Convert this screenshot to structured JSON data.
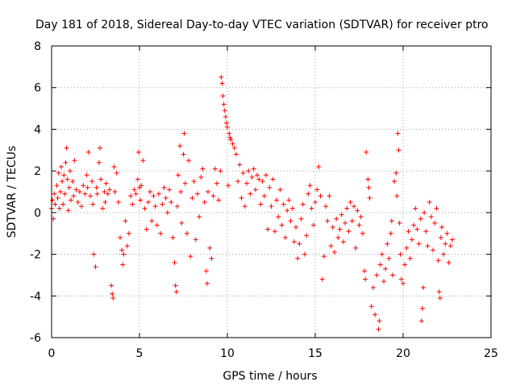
{
  "chart_data": {
    "type": "scatter",
    "title": "Day 181 of 2018, Sidereal Day-to-day VTEC variation (SDTVAR) for receiver ptro",
    "xlabel": "GPS time / hours",
    "ylabel": "SDTVAR / TECUs",
    "xlim": [
      0,
      25
    ],
    "ylim": [
      -6,
      8
    ],
    "xticks": [
      0,
      5,
      10,
      15,
      20,
      25
    ],
    "yticks": [
      -6,
      -4,
      -2,
      0,
      2,
      4,
      6,
      8
    ],
    "xtick_labels": [
      "0",
      "5",
      "10",
      "15",
      "20",
      "25"
    ],
    "ytick_labels": [
      "-6",
      "-4",
      "-2",
      "0",
      "2",
      "4",
      "6",
      "8"
    ],
    "grid": true,
    "marker": "+",
    "color": "#ff0000",
    "series": [
      {
        "name": "SDTVAR",
        "points": [
          [
            0.0,
            0.2
          ],
          [
            0.05,
            0.6
          ],
          [
            0.1,
            -0.3
          ],
          [
            0.15,
            0.9
          ],
          [
            0.2,
            0.4
          ],
          [
            0.3,
            1.3
          ],
          [
            0.35,
            0.7
          ],
          [
            0.4,
            1.9
          ],
          [
            0.45,
            0.2
          ],
          [
            0.5,
            1.0
          ],
          [
            0.55,
            2.2
          ],
          [
            0.6,
            1.5
          ],
          [
            0.65,
            0.4
          ],
          [
            0.7,
            1.8
          ],
          [
            0.75,
            0.9
          ],
          [
            0.8,
            2.4
          ],
          [
            0.85,
            3.1
          ],
          [
            0.9,
            1.6
          ],
          [
            0.95,
            0.1
          ],
          [
            1.0,
            1.2
          ],
          [
            1.05,
            2.0
          ],
          [
            1.1,
            0.6
          ],
          [
            1.2,
            1.5
          ],
          [
            1.25,
            0.8
          ],
          [
            1.3,
            2.5
          ],
          [
            1.4,
            1.1
          ],
          [
            1.5,
            0.5
          ],
          [
            1.6,
            1.0
          ],
          [
            1.7,
            0.3
          ],
          [
            1.8,
            1.3
          ],
          [
            1.9,
            0.9
          ],
          [
            2.0,
            1.8
          ],
          [
            2.05,
            1.2
          ],
          [
            2.1,
            2.9
          ],
          [
            2.2,
            0.8
          ],
          [
            2.3,
            1.5
          ],
          [
            2.35,
            0.4
          ],
          [
            2.4,
            -2.0
          ],
          [
            2.5,
            -2.6
          ],
          [
            2.55,
            1.2
          ],
          [
            2.6,
            0.9
          ],
          [
            2.7,
            2.4
          ],
          [
            2.75,
            3.1
          ],
          [
            2.8,
            1.6
          ],
          [
            2.9,
            0.2
          ],
          [
            3.0,
            1.0
          ],
          [
            3.05,
            0.5
          ],
          [
            3.1,
            1.4
          ],
          [
            3.2,
            0.9
          ],
          [
            3.3,
            1.1
          ],
          [
            3.4,
            -3.5
          ],
          [
            3.45,
            -3.9
          ],
          [
            3.5,
            -4.1
          ],
          [
            3.55,
            2.2
          ],
          [
            3.6,
            1.0
          ],
          [
            3.7,
            1.9
          ],
          [
            3.8,
            0.5
          ],
          [
            3.9,
            -1.2
          ],
          [
            4.0,
            -1.8
          ],
          [
            4.05,
            -2.5
          ],
          [
            4.1,
            -2.0
          ],
          [
            4.2,
            -0.4
          ],
          [
            4.3,
            -1.6
          ],
          [
            4.4,
            -1.0
          ],
          [
            4.5,
            0.8
          ],
          [
            4.6,
            0.4
          ],
          [
            4.7,
            1.1
          ],
          [
            4.8,
            0.9
          ],
          [
            4.9,
            1.6
          ],
          [
            4.95,
            2.9
          ],
          [
            5.0,
            1.2
          ],
          [
            5.05,
            0.6
          ],
          [
            5.1,
            1.3
          ],
          [
            5.2,
            2.5
          ],
          [
            5.3,
            0.2
          ],
          [
            5.4,
            -0.8
          ],
          [
            5.5,
            0.5
          ],
          [
            5.6,
            1.0
          ],
          [
            5.7,
            -0.4
          ],
          [
            5.8,
            0.8
          ],
          [
            5.9,
            0.3
          ],
          [
            6.0,
            -0.6
          ],
          [
            6.1,
            0.9
          ],
          [
            6.2,
            -1.0
          ],
          [
            6.3,
            0.4
          ],
          [
            6.4,
            1.2
          ],
          [
            6.5,
            0.7
          ],
          [
            6.6,
            0.0
          ],
          [
            6.7,
            1.1
          ],
          [
            6.8,
            0.5
          ],
          [
            6.9,
            -1.2
          ],
          [
            7.0,
            -2.4
          ],
          [
            7.05,
            -3.5
          ],
          [
            7.1,
            -3.8
          ],
          [
            7.15,
            0.3
          ],
          [
            7.2,
            1.8
          ],
          [
            7.3,
            3.2
          ],
          [
            7.35,
            1.0
          ],
          [
            7.4,
            -0.5
          ],
          [
            7.5,
            2.8
          ],
          [
            7.55,
            3.8
          ],
          [
            7.6,
            1.4
          ],
          [
            7.7,
            -1.0
          ],
          [
            7.8,
            2.5
          ],
          [
            7.9,
            -2.1
          ],
          [
            8.0,
            0.7
          ],
          [
            8.1,
            1.5
          ],
          [
            8.2,
            -1.3
          ],
          [
            8.3,
            0.9
          ],
          [
            8.4,
            -0.2
          ],
          [
            8.5,
            1.7
          ],
          [
            8.6,
            2.1
          ],
          [
            8.7,
            0.5
          ],
          [
            8.8,
            -2.8
          ],
          [
            8.85,
            -3.4
          ],
          [
            8.9,
            1.0
          ],
          [
            9.0,
            -1.7
          ],
          [
            9.1,
            -2.2
          ],
          [
            9.2,
            0.8
          ],
          [
            9.3,
            2.1
          ],
          [
            9.4,
            1.4
          ],
          [
            9.5,
            0.6
          ],
          [
            9.6,
            2.0
          ],
          [
            9.65,
            6.5
          ],
          [
            9.7,
            6.2
          ],
          [
            9.75,
            5.6
          ],
          [
            9.8,
            5.2
          ],
          [
            9.85,
            4.9
          ],
          [
            9.9,
            4.6
          ],
          [
            9.95,
            4.3
          ],
          [
            10.0,
            4.1
          ],
          [
            10.05,
            1.3
          ],
          [
            10.1,
            3.8
          ],
          [
            10.15,
            3.6
          ],
          [
            10.2,
            3.5
          ],
          [
            10.3,
            3.3
          ],
          [
            10.4,
            3.1
          ],
          [
            10.5,
            2.8
          ],
          [
            10.6,
            1.5
          ],
          [
            10.7,
            2.3
          ],
          [
            10.8,
            0.7
          ],
          [
            10.9,
            1.9
          ],
          [
            11.0,
            0.3
          ],
          [
            11.1,
            1.4
          ],
          [
            11.2,
            2.0
          ],
          [
            11.3,
            0.9
          ],
          [
            11.4,
            1.7
          ],
          [
            11.5,
            2.1
          ],
          [
            11.6,
            1.1
          ],
          [
            11.7,
            1.8
          ],
          [
            11.8,
            1.6
          ],
          [
            11.9,
            0.4
          ],
          [
            12.0,
            1.5
          ],
          [
            12.1,
            0.8
          ],
          [
            12.2,
            1.8
          ],
          [
            12.3,
            -0.8
          ],
          [
            12.4,
            1.2
          ],
          [
            12.5,
            0.3
          ],
          [
            12.6,
            1.6
          ],
          [
            12.7,
            -0.9
          ],
          [
            12.8,
            0.6
          ],
          [
            12.9,
            -0.2
          ],
          [
            13.0,
            1.1
          ],
          [
            13.1,
            -0.6
          ],
          [
            13.2,
            0.4
          ],
          [
            13.3,
            -1.2
          ],
          [
            13.4,
            0.1
          ],
          [
            13.5,
            0.6
          ],
          [
            13.6,
            -0.4
          ],
          [
            13.7,
            0.2
          ],
          [
            13.8,
            -1.4
          ],
          [
            13.9,
            -0.7
          ],
          [
            14.0,
            -2.2
          ],
          [
            14.1,
            -1.5
          ],
          [
            14.2,
            -0.3
          ],
          [
            14.3,
            0.4
          ],
          [
            14.4,
            -2.0
          ],
          [
            14.5,
            -1.1
          ],
          [
            14.6,
            0.9
          ],
          [
            14.7,
            1.3
          ],
          [
            14.8,
            0.2
          ],
          [
            14.9,
            -0.6
          ],
          [
            15.0,
            0.5
          ],
          [
            15.1,
            1.1
          ],
          [
            15.2,
            2.2
          ],
          [
            15.3,
            0.8
          ],
          [
            15.4,
            -3.2
          ],
          [
            15.5,
            -2.1
          ],
          [
            15.6,
            0.3
          ],
          [
            15.7,
            -0.4
          ],
          [
            15.8,
            0.8
          ],
          [
            15.9,
            -1.6
          ],
          [
            16.0,
            -0.7
          ],
          [
            16.1,
            -1.9
          ],
          [
            16.2,
            -0.3
          ],
          [
            16.3,
            -1.2
          ],
          [
            16.4,
            -0.8
          ],
          [
            16.5,
            -0.1
          ],
          [
            16.6,
            -1.4
          ],
          [
            16.7,
            -0.5
          ],
          [
            16.8,
            0.2
          ],
          [
            16.9,
            -0.9
          ],
          [
            17.0,
            0.5
          ],
          [
            17.1,
            -0.4
          ],
          [
            17.2,
            0.3
          ],
          [
            17.3,
            -1.7
          ],
          [
            17.4,
            0.1
          ],
          [
            17.5,
            -0.6
          ],
          [
            17.6,
            -0.2
          ],
          [
            17.7,
            -1.0
          ],
          [
            17.8,
            -2.8
          ],
          [
            17.85,
            -3.2
          ],
          [
            17.9,
            2.9
          ],
          [
            18.0,
            1.6
          ],
          [
            18.05,
            1.2
          ],
          [
            18.1,
            0.7
          ],
          [
            18.2,
            -4.5
          ],
          [
            18.3,
            -3.6
          ],
          [
            18.4,
            -4.9
          ],
          [
            18.5,
            -3.0
          ],
          [
            18.6,
            -5.6
          ],
          [
            18.65,
            -5.2
          ],
          [
            18.7,
            -2.5
          ],
          [
            18.8,
            -2.0
          ],
          [
            18.9,
            -3.3
          ],
          [
            19.0,
            -2.7
          ],
          [
            19.1,
            -1.5
          ],
          [
            19.2,
            -2.2
          ],
          [
            19.3,
            -1.0
          ],
          [
            19.35,
            -0.4
          ],
          [
            19.4,
            -3.0
          ],
          [
            19.5,
            1.5
          ],
          [
            19.6,
            1.9
          ],
          [
            19.65,
            0.8
          ],
          [
            19.7,
            3.8
          ],
          [
            19.75,
            3.0
          ],
          [
            19.8,
            -0.5
          ],
          [
            19.85,
            -2.0
          ],
          [
            19.9,
            -3.2
          ],
          [
            20.0,
            -3.4
          ],
          [
            20.1,
            -2.5
          ],
          [
            20.2,
            -1.7
          ],
          [
            20.3,
            -0.9
          ],
          [
            20.4,
            -2.2
          ],
          [
            20.5,
            -1.3
          ],
          [
            20.6,
            -0.6
          ],
          [
            20.7,
            0.2
          ],
          [
            20.8,
            -0.8
          ],
          [
            20.9,
            -1.5
          ],
          [
            21.0,
            -0.3
          ],
          [
            21.05,
            -5.2
          ],
          [
            21.1,
            -4.6
          ],
          [
            21.15,
            -3.6
          ],
          [
            21.2,
            0.0
          ],
          [
            21.3,
            -0.9
          ],
          [
            21.4,
            -1.6
          ],
          [
            21.5,
            0.5
          ],
          [
            21.6,
            -0.2
          ],
          [
            21.7,
            -1.8
          ],
          [
            21.8,
            -0.5
          ],
          [
            21.9,
            0.2
          ],
          [
            22.0,
            -2.3
          ],
          [
            22.05,
            -3.8
          ],
          [
            22.1,
            -4.1
          ],
          [
            22.15,
            -1.2
          ],
          [
            22.2,
            -0.7
          ],
          [
            22.3,
            -2.0
          ],
          [
            22.4,
            -1.5
          ],
          [
            22.5,
            -1.0
          ],
          [
            22.6,
            -2.4
          ],
          [
            22.7,
            -1.6
          ],
          [
            22.8,
            -1.3
          ]
        ]
      }
    ]
  }
}
